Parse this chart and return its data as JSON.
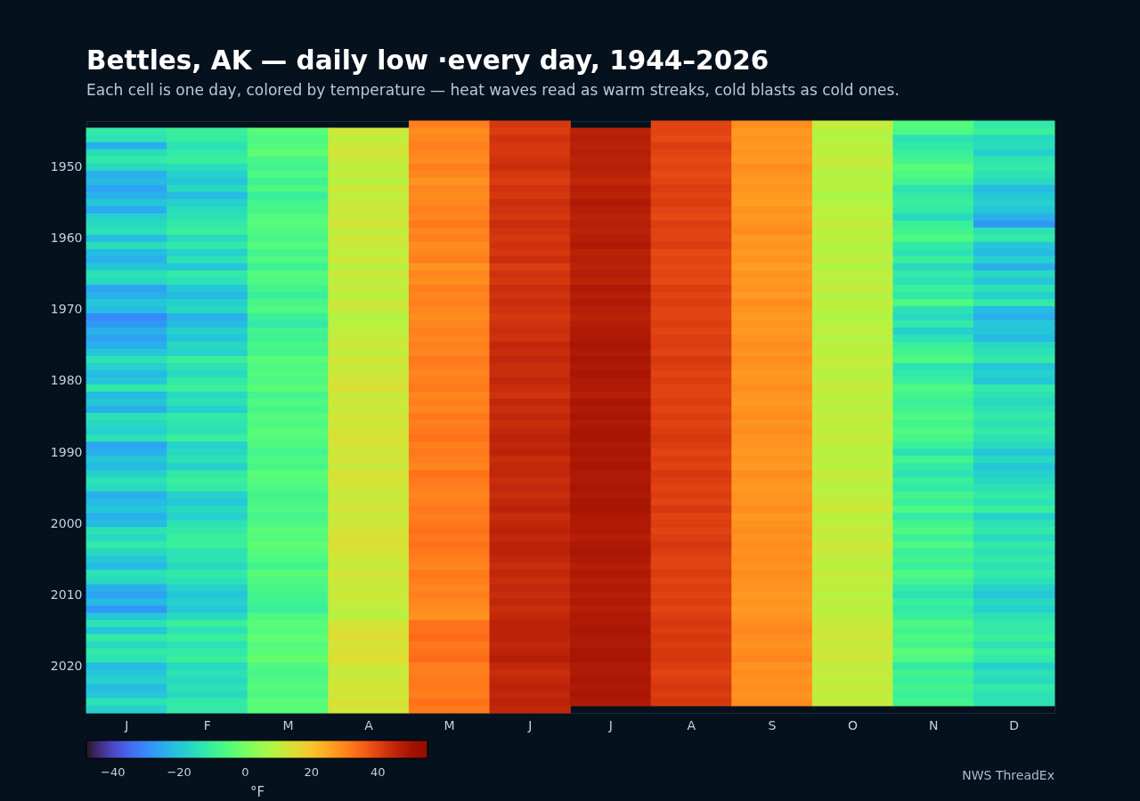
{
  "chart_data": {
    "type": "heatmap",
    "title": "Bettles, AK — daily low ·every day, 1944–2026",
    "subtitle": "Each cell is one day, colored by temperature — heat waves read as warm streaks, cold blasts as cold ones.",
    "clabel": "°F",
    "annotations": [
      "NWS ThreadEx"
    ],
    "categories": [
      "J",
      "F",
      "M",
      "A",
      "M",
      "J",
      "J",
      "A",
      "S",
      "O",
      "N",
      "D"
    ],
    "y_categories": [
      null,
      null,
      null,
      null,
      null,
      null,
      "1950",
      null,
      null,
      null,
      null,
      null,
      null,
      null,
      null,
      null,
      "1960",
      null,
      null,
      null,
      null,
      null,
      null,
      null,
      null,
      null,
      "1970",
      null,
      null,
      null,
      null,
      null,
      null,
      null,
      null,
      null,
      "1980",
      null,
      null,
      null,
      null,
      null,
      null,
      null,
      null,
      null,
      "1990",
      null,
      null,
      null,
      null,
      null,
      null,
      null,
      null,
      null,
      "2000",
      null,
      null,
      null,
      null,
      null,
      null,
      null,
      null,
      null,
      "2010",
      null,
      null,
      null,
      null,
      null,
      null,
      null,
      null,
      null,
      "2020",
      null,
      null,
      null,
      null,
      null,
      null
    ],
    "clim": [
      -48,
      55
    ],
    "cticks": [
      {
        "value": -40,
        "label": "−40"
      },
      {
        "value": -20,
        "label": "−20"
      },
      0,
      20,
      40
    ],
    "cells": [
      [
        null,
        null,
        null,
        null,
        31,
        42,
        null,
        40,
        29,
        11,
        -5,
        -12
      ],
      [
        -12,
        -10,
        -4,
        12,
        29,
        41,
        46,
        40,
        27,
        9,
        -6,
        -10
      ],
      [
        -14,
        -11,
        -6,
        10,
        30,
        43,
        47,
        39,
        28,
        8,
        -14,
        -16
      ],
      [
        -24,
        -14,
        -5,
        12,
        31,
        42,
        46,
        41,
        27,
        10,
        -12,
        -15
      ],
      [
        -15,
        -12,
        -3,
        13,
        30,
        42,
        47,
        40,
        28,
        9,
        -10,
        -18
      ],
      [
        -12,
        -10,
        -7,
        11,
        29,
        43,
        46,
        39,
        27,
        11,
        -8,
        -13
      ],
      [
        -16,
        -15,
        -8,
        10,
        31,
        44,
        47,
        40,
        29,
        10,
        -4,
        -12
      ],
      [
        -24,
        -18,
        -6,
        11,
        30,
        42,
        46,
        39,
        28,
        8,
        -6,
        -14
      ],
      [
        -22,
        -20,
        -9,
        9,
        28,
        41,
        45,
        40,
        27,
        9,
        -8,
        -16
      ],
      [
        -26,
        -16,
        -6,
        12,
        30,
        43,
        47,
        41,
        28,
        9,
        -14,
        -22
      ],
      [
        -24,
        -22,
        -10,
        10,
        29,
        42,
        46,
        40,
        27,
        7,
        -12,
        -20
      ],
      [
        -20,
        -18,
        -8,
        11,
        30,
        44,
        48,
        41,
        26,
        8,
        -10,
        -18
      ],
      [
        -25,
        -15,
        -7,
        12,
        31,
        43,
        47,
        40,
        28,
        10,
        -12,
        -20
      ],
      [
        -18,
        -14,
        -5,
        11,
        30,
        42,
        46,
        39,
        27,
        9,
        -16,
        -24
      ],
      [
        -16,
        -12,
        -4,
        13,
        32,
        44,
        47,
        41,
        28,
        11,
        -10,
        -28
      ],
      [
        -14,
        -10,
        -6,
        10,
        30,
        43,
        46,
        40,
        29,
        9,
        -8,
        -14
      ],
      [
        -22,
        -16,
        -7,
        12,
        31,
        42,
        47,
        40,
        27,
        10,
        -6,
        -12
      ],
      [
        -15,
        -12,
        -5,
        11,
        29,
        43,
        48,
        41,
        28,
        8,
        -12,
        -20
      ],
      [
        -22,
        -18,
        -8,
        10,
        30,
        42,
        46,
        39,
        27,
        9,
        -14,
        -22
      ],
      [
        -24,
        -14,
        -6,
        12,
        31,
        44,
        47,
        40,
        28,
        10,
        -10,
        -18
      ],
      [
        -20,
        -20,
        -9,
        9,
        28,
        41,
        46,
        39,
        26,
        8,
        -16,
        -24
      ],
      [
        -14,
        -12,
        -5,
        12,
        30,
        43,
        47,
        40,
        28,
        10,
        -12,
        -16
      ],
      [
        -16,
        -14,
        -6,
        10,
        29,
        42,
        46,
        39,
        27,
        9,
        -14,
        -20
      ],
      [
        -26,
        -20,
        -8,
        11,
        31,
        44,
        48,
        41,
        28,
        11,
        -10,
        -14
      ],
      [
        -24,
        -22,
        -10,
        9,
        30,
        43,
        47,
        40,
        27,
        8,
        -12,
        -18
      ],
      [
        -20,
        -18,
        -7,
        12,
        31,
        44,
        48,
        41,
        29,
        10,
        -6,
        -12
      ],
      [
        -22,
        -16,
        -6,
        11,
        30,
        43,
        47,
        40,
        28,
        9,
        -14,
        -22
      ],
      [
        -30,
        -24,
        -10,
        8,
        29,
        42,
        46,
        40,
        27,
        8,
        -16,
        -24
      ],
      [
        -28,
        -22,
        -12,
        9,
        30,
        43,
        47,
        41,
        28,
        9,
        -12,
        -20
      ],
      [
        -24,
        -18,
        -8,
        10,
        31,
        44,
        48,
        40,
        27,
        10,
        -18,
        -20
      ],
      [
        -26,
        -20,
        -9,
        11,
        30,
        43,
        48,
        41,
        28,
        8,
        -14,
        -22
      ],
      [
        -24,
        -16,
        -7,
        12,
        31,
        45,
        49,
        41,
        29,
        10,
        -10,
        -16
      ],
      [
        -20,
        -18,
        -8,
        10,
        30,
        44,
        48,
        40,
        28,
        9,
        -8,
        -14
      ],
      [
        -14,
        -10,
        -4,
        13,
        32,
        45,
        49,
        42,
        29,
        11,
        -6,
        -12
      ],
      [
        -18,
        -14,
        -6,
        11,
        31,
        44,
        48,
        41,
        28,
        10,
        -14,
        -20
      ],
      [
        -22,
        -16,
        -5,
        12,
        30,
        44,
        49,
        40,
        27,
        9,
        -12,
        -18
      ],
      [
        -20,
        -12,
        -6,
        13,
        31,
        45,
        48,
        41,
        28,
        10,
        -10,
        -20
      ],
      [
        -12,
        -10,
        -4,
        14,
        32,
        44,
        48,
        40,
        29,
        11,
        -6,
        -12
      ],
      [
        -22,
        -16,
        -8,
        11,
        30,
        43,
        47,
        40,
        28,
        9,
        -8,
        -14
      ],
      [
        -20,
        -14,
        -6,
        12,
        31,
        45,
        49,
        41,
        27,
        10,
        -10,
        -16
      ],
      [
        -24,
        -18,
        -7,
        11,
        30,
        44,
        48,
        40,
        28,
        9,
        -8,
        -14
      ],
      [
        -14,
        -12,
        -5,
        13,
        32,
        45,
        49,
        41,
        29,
        11,
        -6,
        -12
      ],
      [
        -16,
        -13,
        -6,
        12,
        31,
        44,
        48,
        40,
        28,
        10,
        -8,
        -14
      ],
      [
        -18,
        -14,
        -4,
        13,
        32,
        45,
        49,
        41,
        29,
        10,
        -6,
        -12
      ],
      [
        -14,
        -10,
        -5,
        14,
        33,
        46,
        49,
        42,
        28,
        11,
        -7,
        -14
      ],
      [
        -26,
        -18,
        -6,
        13,
        31,
        45,
        48,
        41,
        28,
        10,
        -10,
        -16
      ],
      [
        -24,
        -16,
        -8,
        12,
        32,
        46,
        49,
        40,
        27,
        9,
        -14,
        -20
      ],
      [
        -20,
        -14,
        -6,
        13,
        31,
        44,
        48,
        41,
        28,
        10,
        -8,
        -16
      ],
      [
        -22,
        -18,
        -7,
        11,
        30,
        45,
        49,
        40,
        27,
        9,
        -12,
        -20
      ],
      [
        -18,
        -12,
        -4,
        14,
        33,
        45,
        48,
        42,
        29,
        11,
        -14,
        -18
      ],
      [
        -14,
        -10,
        -5,
        13,
        32,
        44,
        48,
        41,
        28,
        10,
        -10,
        -16
      ],
      [
        -16,
        -12,
        -6,
        12,
        31,
        45,
        49,
        40,
        27,
        9,
        -12,
        -14
      ],
      [
        -24,
        -18,
        -8,
        11,
        30,
        44,
        48,
        41,
        28,
        10,
        -8,
        -12
      ],
      [
        -22,
        -20,
        -7,
        12,
        31,
        45,
        49,
        40,
        28,
        11,
        -10,
        -14
      ],
      [
        -20,
        -16,
        -6,
        13,
        32,
        46,
        49,
        42,
        29,
        12,
        -6,
        -10
      ],
      [
        -24,
        -18,
        -8,
        11,
        31,
        44,
        48,
        40,
        27,
        9,
        -12,
        -18
      ],
      [
        -22,
        -14,
        -6,
        12,
        32,
        45,
        48,
        41,
        28,
        10,
        -8,
        -14
      ],
      [
        -14,
        -12,
        -4,
        13,
        33,
        46,
        48,
        40,
        29,
        11,
        -6,
        -12
      ],
      [
        -16,
        -10,
        -5,
        14,
        32,
        45,
        47,
        41,
        28,
        10,
        -10,
        -16
      ],
      [
        -12,
        -10,
        -3,
        14,
        33,
        46,
        48,
        42,
        29,
        12,
        -6,
        -12
      ],
      [
        -16,
        -14,
        -5,
        13,
        32,
        46,
        49,
        41,
        28,
        11,
        -10,
        -14
      ],
      [
        -20,
        -14,
        -6,
        12,
        31,
        45,
        48,
        40,
        29,
        10,
        -8,
        -12
      ],
      [
        -22,
        -16,
        -8,
        11,
        30,
        44,
        47,
        40,
        28,
        9,
        -10,
        -14
      ],
      [
        -14,
        -12,
        -4,
        13,
        32,
        45,
        48,
        41,
        29,
        11,
        -6,
        -12
      ],
      [
        -16,
        -14,
        -6,
        12,
        31,
        44,
        47,
        40,
        28,
        10,
        -8,
        -14
      ],
      [
        -24,
        -18,
        -7,
        11,
        30,
        45,
        48,
        41,
        28,
        10,
        -12,
        -18
      ],
      [
        -26,
        -20,
        -8,
        12,
        31,
        44,
        47,
        40,
        27,
        9,
        -14,
        -20
      ],
      [
        -22,
        -18,
        -9,
        11,
        30,
        45,
        48,
        41,
        28,
        10,
        -10,
        -16
      ],
      [
        -28,
        -20,
        -10,
        10,
        29,
        44,
        47,
        40,
        27,
        9,
        -12,
        -18
      ],
      [
        -20,
        -16,
        -6,
        9,
        28,
        45,
        48,
        41,
        28,
        10,
        -10,
        -14
      ],
      [
        -14,
        -10,
        -4,
        13,
        33,
        46,
        48,
        42,
        29,
        11,
        -6,
        -12
      ],
      [
        -20,
        -14,
        -5,
        14,
        33,
        46,
        49,
        41,
        30,
        12,
        -8,
        -12
      ],
      [
        -12,
        -10,
        -3,
        15,
        34,
        46,
        48,
        42,
        29,
        12,
        -6,
        -10
      ],
      [
        -16,
        -14,
        -5,
        13,
        32,
        45,
        48,
        41,
        28,
        11,
        -8,
        -14
      ],
      [
        -12,
        -12,
        -4,
        14,
        33,
        46,
        49,
        42,
        29,
        12,
        -4,
        -10
      ],
      [
        -14,
        -10,
        -2,
        15,
        34,
        47,
        49,
        42,
        30,
        12,
        -6,
        -12
      ],
      [
        -22,
        -16,
        -6,
        12,
        31,
        45,
        48,
        41,
        28,
        10,
        -12,
        -18
      ],
      [
        -20,
        -14,
        -7,
        11,
        31,
        44,
        48,
        40,
        29,
        11,
        -8,
        -14
      ],
      [
        -18,
        -16,
        -6,
        12,
        32,
        45,
        49,
        41,
        28,
        10,
        -10,
        -16
      ],
      [
        -22,
        -14,
        -5,
        13,
        32,
        46,
        48,
        42,
        29,
        11,
        -8,
        -12
      ],
      [
        -20,
        -16,
        -6,
        12,
        31,
        45,
        49,
        41,
        28,
        10,
        -10,
        -14
      ],
      [
        -14,
        -12,
        -4,
        14,
        33,
        46,
        48,
        42,
        29,
        11,
        -8,
        -14
      ],
      [
        -18,
        -12,
        -4,
        13,
        32,
        45,
        null,
        null,
        null,
        null,
        null,
        null
      ]
    ]
  }
}
